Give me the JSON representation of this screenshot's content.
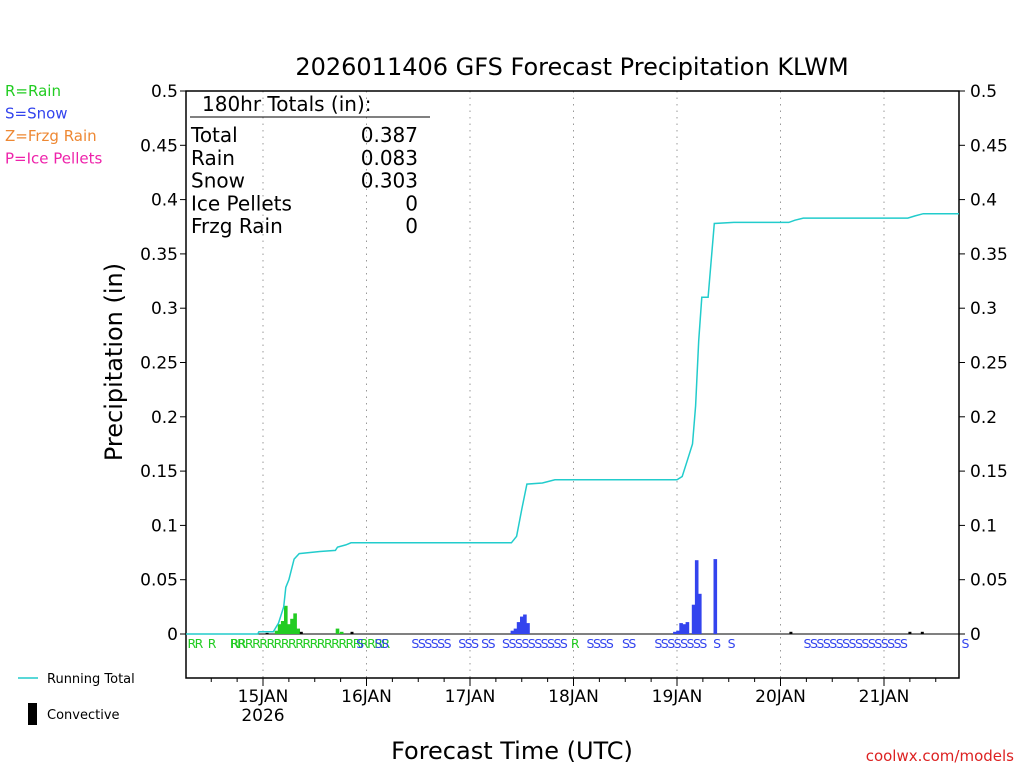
{
  "chart_data": {
    "type": "bar",
    "title": "2026011406 GFS Forecast Precipitation KLWM",
    "xlabel": "Forecast Time (UTC)",
    "ylabel": "Precipitation (in)",
    "ylim": [
      0,
      0.5
    ],
    "xlim_days": [
      14.25,
      21.75
    ],
    "yticks": [
      "0",
      "0.05",
      "0.1",
      "0.15",
      "0.2",
      "0.25",
      "0.3",
      "0.35",
      "0.4",
      "0.45",
      "0.5"
    ],
    "xticks": [
      {
        "day": 15,
        "label": "15JAN",
        "sub": "2026"
      },
      {
        "day": 16,
        "label": "16JAN",
        "sub": ""
      },
      {
        "day": 17,
        "label": "17JAN",
        "sub": ""
      },
      {
        "day": 18,
        "label": "18JAN",
        "sub": ""
      },
      {
        "day": 19,
        "label": "19JAN",
        "sub": ""
      },
      {
        "day": 20,
        "label": "20JAN",
        "sub": ""
      },
      {
        "day": 21,
        "label": "21JAN",
        "sub": ""
      }
    ],
    "legend_types": [
      {
        "label": "R=Rain",
        "color": "#22cc22"
      },
      {
        "label": "S=Snow",
        "color": "#3344ee"
      },
      {
        "label": "Z=Frzg Rain",
        "color": "#ee8833"
      },
      {
        "label": "P=Ice Pellets",
        "color": "#ee22aa"
      }
    ],
    "legend_lines": [
      {
        "label": "Running Total",
        "color": "#22cccc",
        "kind": "line"
      },
      {
        "label": "Convective",
        "color": "#000000",
        "kind": "bar"
      }
    ],
    "totals": {
      "heading": "180hr Totals (in):",
      "rows": [
        {
          "label": "Total",
          "value": "0.387"
        },
        {
          "label": "Rain",
          "value": "0.083"
        },
        {
          "label": "Snow",
          "value": "0.303"
        },
        {
          "label": "Ice Pellets",
          "value": "0"
        },
        {
          "label": "Frzg Rain",
          "value": "0"
        }
      ]
    },
    "series": [
      {
        "name": "Rain",
        "color": "#22cc22",
        "bars": [
          {
            "day": 15.13,
            "value": 0.003
          },
          {
            "day": 15.16,
            "value": 0.009
          },
          {
            "day": 15.19,
            "value": 0.012
          },
          {
            "day": 15.22,
            "value": 0.026
          },
          {
            "day": 15.25,
            "value": 0.009
          },
          {
            "day": 15.28,
            "value": 0.014
          },
          {
            "day": 15.31,
            "value": 0.019
          },
          {
            "day": 15.34,
            "value": 0.005
          },
          {
            "day": 15.72,
            "value": 0.005
          },
          {
            "day": 15.76,
            "value": 0.002
          }
        ]
      },
      {
        "name": "Snow",
        "color": "#3344ee",
        "bars": [
          {
            "day": 17.41,
            "value": 0.003
          },
          {
            "day": 17.44,
            "value": 0.005
          },
          {
            "day": 17.47,
            "value": 0.011
          },
          {
            "day": 17.5,
            "value": 0.016
          },
          {
            "day": 17.53,
            "value": 0.018
          },
          {
            "day": 17.56,
            "value": 0.01
          },
          {
            "day": 18.98,
            "value": 0.002
          },
          {
            "day": 19.01,
            "value": 0.003
          },
          {
            "day": 19.04,
            "value": 0.01
          },
          {
            "day": 19.07,
            "value": 0.009
          },
          {
            "day": 19.1,
            "value": 0.011
          },
          {
            "day": 19.16,
            "value": 0.027
          },
          {
            "day": 19.19,
            "value": 0.068
          },
          {
            "day": 19.22,
            "value": 0.037
          },
          {
            "day": 19.37,
            "value": 0.069
          }
        ]
      },
      {
        "name": "Convective",
        "color": "#000000",
        "bars": [
          {
            "day": 15.04,
            "value": 0.001
          },
          {
            "day": 15.37,
            "value": 0.002
          },
          {
            "day": 15.86,
            "value": 0.002
          },
          {
            "day": 20.1,
            "value": 0.002
          },
          {
            "day": 21.25,
            "value": 0.002
          },
          {
            "day": 21.37,
            "value": 0.002
          }
        ]
      },
      {
        "name": "Running Total",
        "color": "#22cccc",
        "type": "line",
        "points": [
          [
            14.25,
            0
          ],
          [
            14.95,
            0
          ],
          [
            14.96,
            0.002
          ],
          [
            15.1,
            0.002
          ],
          [
            15.15,
            0.01
          ],
          [
            15.2,
            0.025
          ],
          [
            15.22,
            0.043
          ],
          [
            15.25,
            0.05
          ],
          [
            15.3,
            0.069
          ],
          [
            15.35,
            0.074
          ],
          [
            15.55,
            0.076
          ],
          [
            15.7,
            0.077
          ],
          [
            15.72,
            0.08
          ],
          [
            15.8,
            0.082
          ],
          [
            15.85,
            0.084
          ],
          [
            17.4,
            0.084
          ],
          [
            17.45,
            0.09
          ],
          [
            17.5,
            0.115
          ],
          [
            17.55,
            0.138
          ],
          [
            17.7,
            0.139
          ],
          [
            17.82,
            0.142
          ],
          [
            19.0,
            0.142
          ],
          [
            19.05,
            0.145
          ],
          [
            19.1,
            0.16
          ],
          [
            19.15,
            0.175
          ],
          [
            19.18,
            0.21
          ],
          [
            19.21,
            0.27
          ],
          [
            19.24,
            0.31
          ],
          [
            19.3,
            0.31
          ],
          [
            19.36,
            0.378
          ],
          [
            19.55,
            0.379
          ],
          [
            20.08,
            0.379
          ],
          [
            20.14,
            0.381
          ],
          [
            20.22,
            0.383
          ],
          [
            21.23,
            0.383
          ],
          [
            21.3,
            0.385
          ],
          [
            21.38,
            0.387
          ],
          [
            21.75,
            0.387
          ]
        ]
      }
    ],
    "ptype_markers": [
      {
        "text": "RR",
        "day": 14.34,
        "type": "R"
      },
      {
        "text": "R",
        "day": 14.5,
        "type": "R"
      },
      {
        "text": "RR",
        "day": 14.75,
        "type": "R"
      },
      {
        "text": "RRRRRRRRRRRRRRRRRRRRRR",
        "day": 15.45,
        "type": "R"
      },
      {
        "text": "S",
        "day": 15.93,
        "type": "S"
      },
      {
        "text": "SS",
        "day": 16.14,
        "type": "S"
      },
      {
        "text": "SSSSSS",
        "day": 16.62,
        "type": "S"
      },
      {
        "text": "SSS",
        "day": 16.98,
        "type": "S"
      },
      {
        "text": "SS",
        "day": 17.17,
        "type": "S"
      },
      {
        "text": "SSSSSSSSSS",
        "day": 17.62,
        "type": "S"
      },
      {
        "text": "R",
        "day": 18.01,
        "type": "R"
      },
      {
        "text": "SSSS",
        "day": 18.25,
        "type": "S"
      },
      {
        "text": "SS",
        "day": 18.53,
        "type": "S"
      },
      {
        "text": "SSSSSSSS",
        "day": 19.03,
        "type": "S"
      },
      {
        "text": "S",
        "day": 19.38,
        "type": "S"
      },
      {
        "text": "S",
        "day": 19.52,
        "type": "S"
      },
      {
        "text": "SSSSSSSSSSSSSSSS",
        "day": 20.72,
        "type": "S"
      },
      {
        "text": "S",
        "day": 21.78,
        "type": "S"
      }
    ],
    "credit": "coolwx.com/models"
  }
}
